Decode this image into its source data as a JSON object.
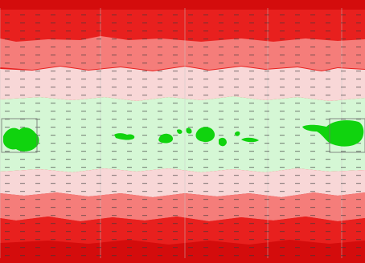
{
  "colors": {
    "band_edge": "#d40c0c",
    "band_outer": "#e8201e",
    "band_mid": "#f57d7a",
    "band_inner": "#f8d7d7",
    "band_center": "#d5f7d5",
    "blob_green": "#10d30e",
    "grid_line": "#c8c8c8",
    "frame_box": "#707070"
  },
  "regions": [
    {
      "name": "band-top-edge",
      "color_key": "band_edge"
    },
    {
      "name": "band-top-outer",
      "color_key": "band_outer"
    },
    {
      "name": "band-top-mid",
      "color_key": "band_mid"
    },
    {
      "name": "band-top-inner",
      "color_key": "band_inner"
    },
    {
      "name": "band-center",
      "color_key": "band_center"
    },
    {
      "name": "band-bottom-inner",
      "color_key": "band_inner"
    },
    {
      "name": "band-bottom-mid",
      "color_key": "band_mid"
    },
    {
      "name": "band-bottom-outer",
      "color_key": "band_outer"
    },
    {
      "name": "band-bottom-edge",
      "color_key": "band_edge"
    }
  ],
  "features": [
    {
      "name": "green-blob-west",
      "color_key": "blob_green"
    },
    {
      "name": "green-blob-small-1",
      "color_key": "blob_green"
    },
    {
      "name": "green-blob-cluster-center",
      "color_key": "blob_green"
    },
    {
      "name": "green-blob-cluster-right",
      "color_key": "blob_green"
    },
    {
      "name": "green-blob-east",
      "color_key": "blob_green"
    }
  ],
  "frames": [
    {
      "name": "frame-box-west"
    },
    {
      "name": "frame-box-east"
    }
  ]
}
